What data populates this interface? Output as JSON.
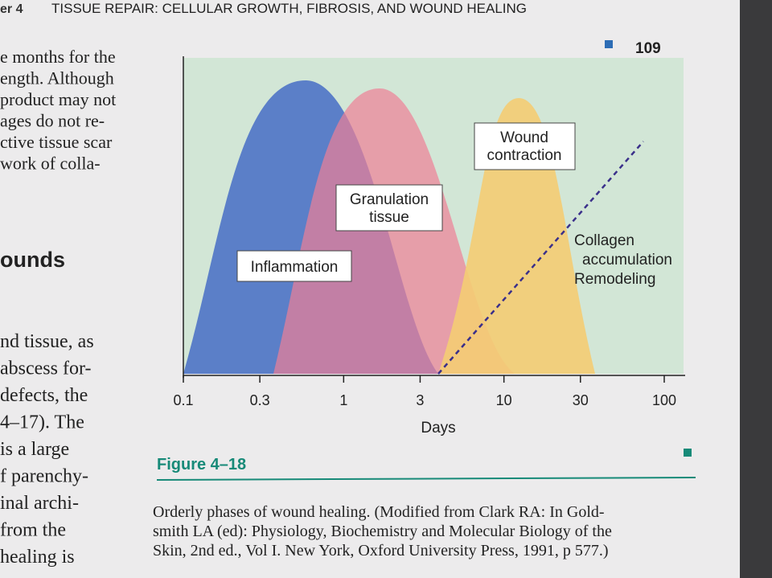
{
  "header": {
    "chapter": "er 4",
    "title": "TISSUE REPAIR: CELLULAR GROWTH, FIBROSIS, AND WOUND HEALING",
    "page": "109"
  },
  "left_column": {
    "lines_top": [
      "e months for the",
      "ength. Although",
      "product may not",
      "ages do not re-",
      "ctive tissue scar",
      "work of colla-"
    ],
    "heading": "ounds",
    "lines_bottom": [
      "nd tissue, as",
      "abscess for-",
      "defects, the",
      "4–17). The",
      "is a large",
      "f parenchy-",
      "inal archi-",
      "from the",
      "healing is"
    ]
  },
  "figure": {
    "x_label": "Days",
    "x_scale": "log",
    "xlim": [
      0.1,
      100
    ],
    "xticks": [
      0.1,
      0.3,
      1,
      3,
      10,
      30,
      100
    ],
    "phase_labels": {
      "inflammation": "Inflammation",
      "granulation": "Granulation tissue",
      "contraction": "Wound contraction",
      "collagen": [
        "Collagen",
        "accumulation",
        "Remodeling"
      ]
    },
    "number": "Figure 4–18",
    "caption": [
      "Orderly phases of wound healing. (Modified from Clark RA: In Gold-",
      "smith LA (ed): Physiology, Biochemistry and Molecular Biology of the",
      "Skin, 2nd ed., Vol I. New York, Oxford University Press, 1991, p 577.)"
    ]
  }
}
